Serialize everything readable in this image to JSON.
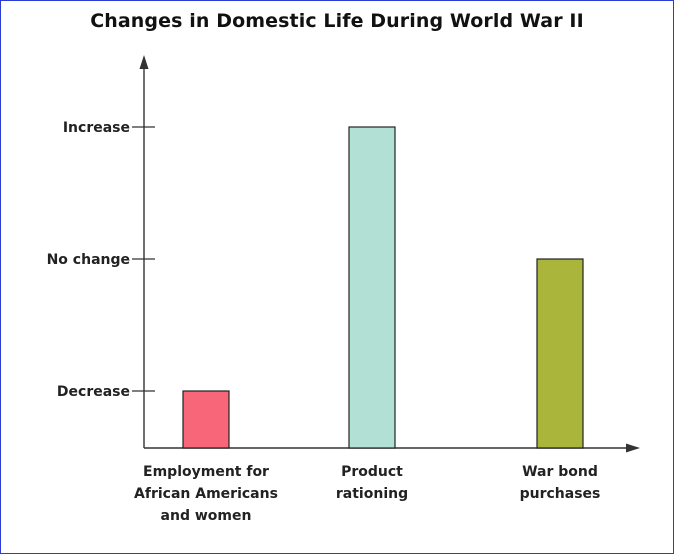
{
  "chart_data": {
    "type": "bar",
    "title": "Changes in Domestic Life During World War II",
    "categories": [
      [
        "Employment for",
        "African Americans",
        "and women"
      ],
      [
        "Product",
        "rationing"
      ],
      [
        "War bond",
        "purchases"
      ]
    ],
    "y_ticks": [
      "Decrease",
      "No change",
      "Increase"
    ],
    "values": [
      "Decrease",
      "Increase",
      "No change"
    ],
    "bar_colors": [
      "#f76679",
      "#b3e0d5",
      "#a9b63b"
    ],
    "xlabel": "",
    "ylabel": "",
    "grid": false
  }
}
